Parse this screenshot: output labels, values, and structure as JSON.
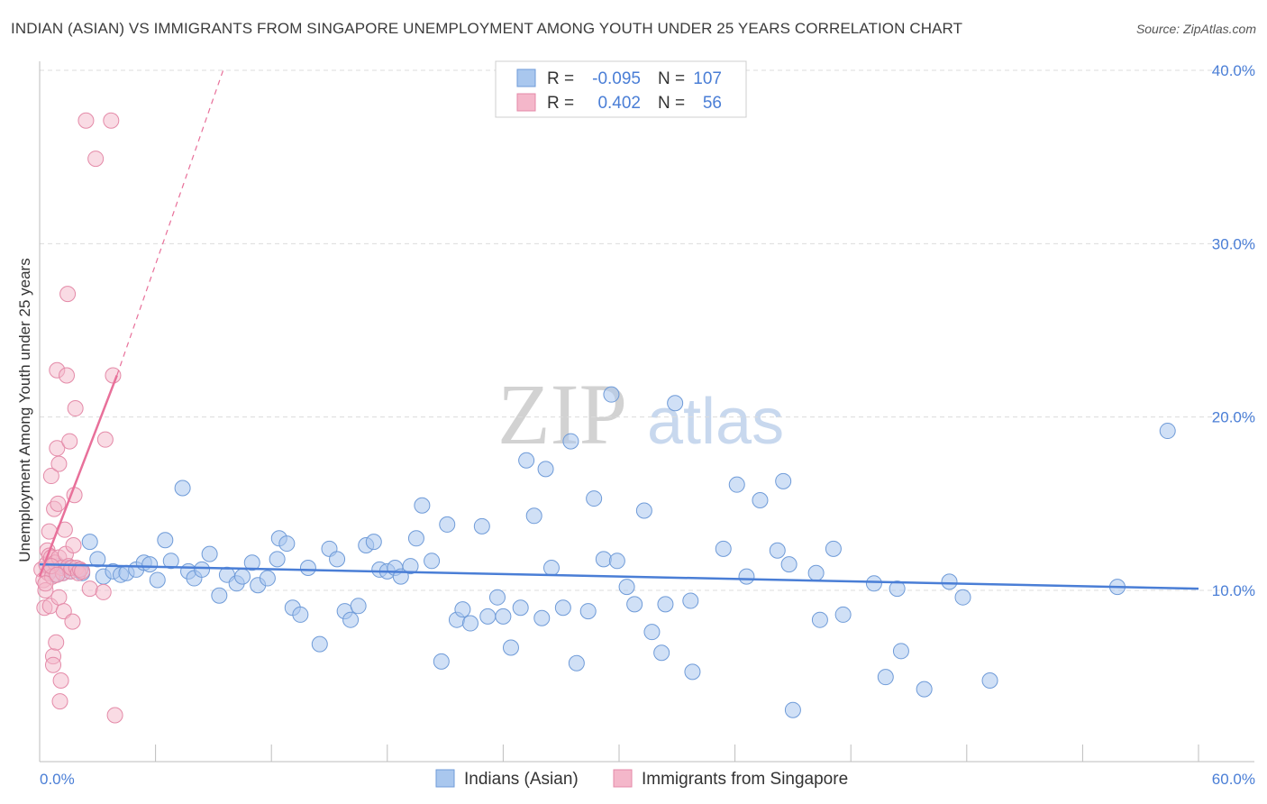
{
  "title": "INDIAN (ASIAN) VS IMMIGRANTS FROM SINGAPORE UNEMPLOYMENT AMONG YOUTH UNDER 25 YEARS CORRELATION CHART",
  "source": "Source: ZipAtlas.com",
  "watermark": {
    "zip": "ZIP",
    "atlas": "atlas"
  },
  "legend_box": {
    "rows": [
      {
        "r_label": "R =",
        "r_value": "-0.095",
        "n_label": "N =",
        "n_value": "107"
      },
      {
        "r_label": "R =",
        "r_value": "0.402",
        "n_label": "N =",
        "n_value": "56"
      }
    ]
  },
  "bottom_legend": [
    "Indians (Asian)",
    "Immigrants from Singapore"
  ],
  "colors": {
    "blue": "#4a7ed6",
    "blue_fill": "#a9c7ee",
    "pink": "#e8709a",
    "pink_fill": "#f4b7ca",
    "grid": "#dcdcdc"
  },
  "chart_data": {
    "type": "scatter",
    "xlabel": "",
    "ylabel": "Unemployment Among Youth under 25 years",
    "xlim": [
      0,
      60
    ],
    "ylim": [
      0,
      40
    ],
    "x_tick_labels": [
      "0.0%",
      "60.0%"
    ],
    "y_tick_labels": [
      "10.0%",
      "20.0%",
      "30.0%",
      "40.0%"
    ],
    "y_ticks": [
      10,
      20,
      30,
      40
    ],
    "series": [
      {
        "name": "Indians (Asian)",
        "r": -0.095,
        "n": 107,
        "trend": {
          "x": [
            0,
            60
          ],
          "y": [
            11.5,
            10.1
          ]
        },
        "points": [
          [
            0.6,
            11.2
          ],
          [
            0.8,
            10.9
          ],
          [
            1.0,
            11.4
          ],
          [
            1.2,
            11.0
          ],
          [
            1.4,
            11.3
          ],
          [
            1.6,
            11.1
          ],
          [
            2.0,
            11.2
          ],
          [
            2.2,
            11.0
          ],
          [
            2.6,
            12.8
          ],
          [
            3.0,
            11.8
          ],
          [
            3.3,
            10.8
          ],
          [
            3.8,
            11.1
          ],
          [
            4.2,
            10.9
          ],
          [
            4.5,
            11.0
          ],
          [
            5.0,
            11.2
          ],
          [
            5.4,
            11.6
          ],
          [
            5.7,
            11.5
          ],
          [
            6.1,
            10.6
          ],
          [
            6.5,
            12.9
          ],
          [
            6.8,
            11.7
          ],
          [
            7.4,
            15.9
          ],
          [
            7.7,
            11.1
          ],
          [
            8.0,
            10.7
          ],
          [
            8.4,
            11.2
          ],
          [
            8.8,
            12.1
          ],
          [
            9.3,
            9.7
          ],
          [
            9.7,
            10.9
          ],
          [
            10.2,
            10.4
          ],
          [
            10.5,
            10.8
          ],
          [
            11.0,
            11.6
          ],
          [
            11.3,
            10.3
          ],
          [
            11.8,
            10.7
          ],
          [
            12.3,
            11.8
          ],
          [
            12.4,
            13.0
          ],
          [
            12.8,
            12.7
          ],
          [
            13.1,
            9.0
          ],
          [
            13.5,
            8.6
          ],
          [
            13.9,
            11.3
          ],
          [
            14.5,
            6.9
          ],
          [
            15.0,
            12.4
          ],
          [
            15.4,
            11.8
          ],
          [
            15.8,
            8.8
          ],
          [
            16.1,
            8.3
          ],
          [
            16.5,
            9.1
          ],
          [
            16.9,
            12.6
          ],
          [
            17.3,
            12.8
          ],
          [
            17.6,
            11.2
          ],
          [
            18.0,
            11.1
          ],
          [
            18.4,
            11.3
          ],
          [
            18.7,
            10.8
          ],
          [
            19.2,
            11.4
          ],
          [
            19.5,
            13.0
          ],
          [
            19.8,
            14.9
          ],
          [
            20.3,
            11.7
          ],
          [
            20.8,
            5.9
          ],
          [
            21.1,
            13.8
          ],
          [
            21.6,
            8.3
          ],
          [
            21.9,
            8.9
          ],
          [
            22.3,
            8.1
          ],
          [
            22.9,
            13.7
          ],
          [
            23.2,
            8.5
          ],
          [
            23.7,
            9.6
          ],
          [
            24.0,
            8.5
          ],
          [
            24.4,
            6.7
          ],
          [
            24.9,
            9.0
          ],
          [
            25.2,
            17.5
          ],
          [
            25.6,
            14.3
          ],
          [
            26.0,
            8.4
          ],
          [
            26.2,
            17.0
          ],
          [
            26.5,
            11.3
          ],
          [
            27.1,
            9.0
          ],
          [
            27.5,
            18.6
          ],
          [
            27.8,
            5.8
          ],
          [
            28.4,
            8.8
          ],
          [
            28.7,
            15.3
          ],
          [
            29.2,
            11.8
          ],
          [
            29.6,
            21.3
          ],
          [
            29.9,
            11.7
          ],
          [
            30.4,
            10.2
          ],
          [
            30.8,
            9.2
          ],
          [
            31.3,
            14.6
          ],
          [
            31.7,
            7.6
          ],
          [
            32.2,
            6.4
          ],
          [
            32.4,
            9.2
          ],
          [
            32.9,
            20.8
          ],
          [
            33.7,
            9.4
          ],
          [
            33.8,
            5.3
          ],
          [
            35.4,
            12.4
          ],
          [
            36.1,
            16.1
          ],
          [
            36.6,
            10.8
          ],
          [
            37.3,
            15.2
          ],
          [
            38.2,
            12.3
          ],
          [
            38.5,
            16.3
          ],
          [
            38.8,
            11.5
          ],
          [
            39.0,
            3.1
          ],
          [
            40.2,
            11.0
          ],
          [
            40.4,
            8.3
          ],
          [
            41.1,
            12.4
          ],
          [
            41.6,
            8.6
          ],
          [
            43.2,
            10.4
          ],
          [
            43.8,
            5.0
          ],
          [
            44.4,
            10.1
          ],
          [
            44.6,
            6.5
          ],
          [
            45.8,
            4.3
          ],
          [
            47.1,
            10.5
          ],
          [
            47.8,
            9.6
          ],
          [
            49.2,
            4.8
          ],
          [
            55.8,
            10.2
          ],
          [
            58.4,
            19.2
          ]
        ]
      },
      {
        "name": "Immigrants from Singapore",
        "r": 0.402,
        "n": 56,
        "trend": {
          "x": [
            0,
            4.0
          ],
          "y": [
            10.8,
            22.4
          ],
          "dashed_to": {
            "x": 9.5,
            "y": 40.0
          }
        },
        "points": [
          [
            0.1,
            11.2
          ],
          [
            0.2,
            10.6
          ],
          [
            0.25,
            9.0
          ],
          [
            0.3,
            10.0
          ],
          [
            0.35,
            11.5
          ],
          [
            0.4,
            12.3
          ],
          [
            0.45,
            11.0
          ],
          [
            0.5,
            13.4
          ],
          [
            0.5,
            12.0
          ],
          [
            0.55,
            9.1
          ],
          [
            0.6,
            16.6
          ],
          [
            0.6,
            11.9
          ],
          [
            0.65,
            10.8
          ],
          [
            0.7,
            6.2
          ],
          [
            0.7,
            5.7
          ],
          [
            0.75,
            14.7
          ],
          [
            0.8,
            11.6
          ],
          [
            0.85,
            7.0
          ],
          [
            0.9,
            18.2
          ],
          [
            0.9,
            22.7
          ],
          [
            0.95,
            15.0
          ],
          [
            1.0,
            11.9
          ],
          [
            1.0,
            17.3
          ],
          [
            1.0,
            9.6
          ],
          [
            1.05,
            3.6
          ],
          [
            1.1,
            4.8
          ],
          [
            1.15,
            11.3
          ],
          [
            1.2,
            11.0
          ],
          [
            1.25,
            8.8
          ],
          [
            1.3,
            13.5
          ],
          [
            1.35,
            12.1
          ],
          [
            1.4,
            22.4
          ],
          [
            1.45,
            27.1
          ],
          [
            1.5,
            11.4
          ],
          [
            1.55,
            18.6
          ],
          [
            1.6,
            11.1
          ],
          [
            1.65,
            11.3
          ],
          [
            1.7,
            8.2
          ],
          [
            1.75,
            12.6
          ],
          [
            1.8,
            15.5
          ],
          [
            1.85,
            20.5
          ],
          [
            1.9,
            11.3
          ],
          [
            2.0,
            11.0
          ],
          [
            2.1,
            11.2
          ],
          [
            2.2,
            11.1
          ],
          [
            2.4,
            37.1
          ],
          [
            2.6,
            10.1
          ],
          [
            2.9,
            34.9
          ],
          [
            3.3,
            9.9
          ],
          [
            3.4,
            18.7
          ],
          [
            3.7,
            37.1
          ],
          [
            3.8,
            22.4
          ],
          [
            3.9,
            2.8
          ],
          [
            0.3,
            10.4
          ],
          [
            0.6,
            11.4
          ],
          [
            0.9,
            10.9
          ]
        ]
      }
    ]
  }
}
